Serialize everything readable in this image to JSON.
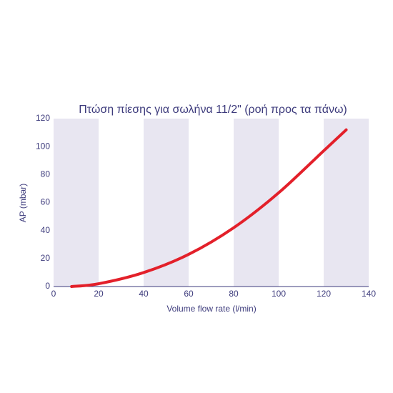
{
  "chart_data": {
    "type": "line",
    "title": "Πτώση πίεσης για σωλήνα 11/2\" (ροή προς τα πάνω)",
    "x_label": "Volume flow rate (l/min)",
    "y_label": "AP (mbar)",
    "x": [
      8,
      20,
      40,
      60,
      80,
      100,
      120,
      130
    ],
    "series": [
      {
        "color": "#e3202a",
        "values": [
          0,
          2,
          10,
          23,
          42,
          67,
          97,
          112
        ]
      }
    ],
    "xlim": [
      0,
      140
    ],
    "xticks": [
      0,
      20,
      40,
      60,
      80,
      100,
      120,
      140
    ],
    "ylim": [
      0,
      120
    ],
    "yticks": [
      0,
      20,
      40,
      60,
      80,
      100,
      120
    ],
    "band_color": "#e8e6f1"
  }
}
